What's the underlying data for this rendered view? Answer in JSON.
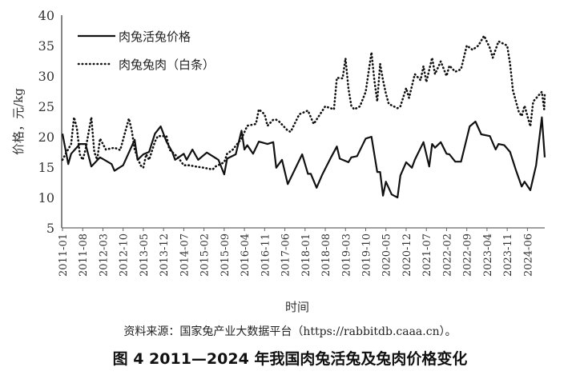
{
  "chart_data": {
    "type": "line",
    "title": "",
    "xlabel": "时间",
    "ylabel": "价格，元/kg",
    "ylim": [
      5,
      40
    ],
    "yticks": [
      5,
      10,
      15,
      20,
      25,
      30,
      35,
      40
    ],
    "x_unit": "month index from 2011-01",
    "x_range": [
      0,
      167
    ],
    "xtick_labels": [
      "2011-01",
      "2011-08",
      "2012-03",
      "2012-10",
      "2013-05",
      "2013-12",
      "2014-07",
      "2015-02",
      "2015-09",
      "2016-04",
      "2016-11",
      "2017-06",
      "2018-01",
      "2018-08",
      "2019-03",
      "2019-10",
      "2020-05",
      "2020-12",
      "2021-07",
      "2022-02",
      "2022-09",
      "2023-04",
      "2023-11",
      "2024-06"
    ],
    "xtick_step_months": 7,
    "grid": false,
    "legend_position": "top-left",
    "series": [
      {
        "name": "肉兔活兔价格",
        "style": "solid",
        "points": [
          [
            0,
            20.5
          ],
          [
            2,
            15.5
          ],
          [
            3,
            17.2
          ],
          [
            6,
            18.8
          ],
          [
            8,
            18.8
          ],
          [
            10,
            15.1
          ],
          [
            13,
            16.6
          ],
          [
            17,
            15.5
          ],
          [
            18,
            14.4
          ],
          [
            21,
            15.3
          ],
          [
            25,
            19.5
          ],
          [
            26,
            16.2
          ],
          [
            28,
            17.1
          ],
          [
            30,
            17.5
          ],
          [
            32,
            20.5
          ],
          [
            34,
            21.7
          ],
          [
            36,
            19.2
          ],
          [
            38,
            17.5
          ],
          [
            39,
            16.2
          ],
          [
            42,
            17.2
          ],
          [
            43,
            16.2
          ],
          [
            45,
            17.9
          ],
          [
            47,
            16.2
          ],
          [
            50,
            17.4
          ],
          [
            52,
            16.8
          ],
          [
            54,
            16.2
          ],
          [
            56,
            13.8
          ],
          [
            57,
            16.4
          ],
          [
            60,
            17.1
          ],
          [
            62,
            21
          ],
          [
            63,
            17.9
          ],
          [
            64,
            18.6
          ],
          [
            66,
            17.2
          ],
          [
            68,
            19.2
          ],
          [
            71,
            18.8
          ],
          [
            73,
            19.1
          ],
          [
            74,
            14.9
          ],
          [
            76,
            16.2
          ],
          [
            78,
            12.2
          ],
          [
            83,
            17.1
          ],
          [
            85,
            13.9
          ],
          [
            86,
            13.9
          ],
          [
            88,
            11.6
          ],
          [
            90,
            13.8
          ],
          [
            93,
            16.6
          ],
          [
            95,
            18.4
          ],
          [
            96,
            16.4
          ],
          [
            99,
            15.8
          ],
          [
            100,
            16.6
          ],
          [
            102,
            16.8
          ],
          [
            105,
            19.7
          ],
          [
            107,
            20
          ],
          [
            109,
            14.2
          ],
          [
            110,
            14.2
          ],
          [
            111,
            10.3
          ],
          [
            112,
            12.6
          ],
          [
            114,
            10.5
          ],
          [
            116,
            10
          ],
          [
            117,
            13.6
          ],
          [
            119,
            15.8
          ],
          [
            121,
            14.9
          ],
          [
            122,
            16.2
          ],
          [
            125,
            19.1
          ],
          [
            127,
            15.1
          ],
          [
            128,
            18.8
          ],
          [
            129,
            18.2
          ],
          [
            131,
            19.1
          ],
          [
            133,
            17.2
          ],
          [
            134,
            17.1
          ],
          [
            136,
            15.9
          ],
          [
            138,
            15.9
          ],
          [
            141,
            21.7
          ],
          [
            143,
            22.5
          ],
          [
            145,
            20.4
          ],
          [
            148,
            20.1
          ],
          [
            150,
            17.9
          ],
          [
            151,
            18.8
          ],
          [
            153,
            18.6
          ],
          [
            155,
            17.5
          ],
          [
            157,
            14.5
          ],
          [
            159,
            11.8
          ],
          [
            160,
            12.6
          ],
          [
            162,
            11.2
          ],
          [
            164,
            15.3
          ],
          [
            166,
            23.2
          ],
          [
            167,
            16.6
          ]
        ]
      },
      {
        "name": "肉兔兔肉（白条）",
        "style": "dotted",
        "points": [
          [
            0,
            16.2
          ],
          [
            1,
            17.1
          ],
          [
            3,
            18.8
          ],
          [
            4,
            23.2
          ],
          [
            5,
            21.4
          ],
          [
            6,
            17.1
          ],
          [
            7,
            16.2
          ],
          [
            8,
            17.9
          ],
          [
            10,
            23.2
          ],
          [
            11,
            17.5
          ],
          [
            12,
            16.2
          ],
          [
            13,
            19.7
          ],
          [
            15,
            17.9
          ],
          [
            18,
            18.2
          ],
          [
            20,
            17.8
          ],
          [
            23,
            23
          ],
          [
            24,
            21
          ],
          [
            25,
            17.9
          ],
          [
            27,
            15.3
          ],
          [
            28,
            14.9
          ],
          [
            29,
            17.1
          ],
          [
            30,
            16.2
          ],
          [
            32,
            19.2
          ],
          [
            33,
            20.1
          ],
          [
            36,
            20.1
          ],
          [
            37,
            17.9
          ],
          [
            40,
            16.6
          ],
          [
            42,
            15.3
          ],
          [
            44,
            15.3
          ],
          [
            46,
            15.1
          ],
          [
            49,
            14.9
          ],
          [
            52,
            14.6
          ],
          [
            53,
            15.1
          ],
          [
            56,
            15.8
          ],
          [
            57,
            17.2
          ],
          [
            59,
            17.9
          ],
          [
            62,
            19.7
          ],
          [
            64,
            21.8
          ],
          [
            67,
            22.1
          ],
          [
            68,
            24.5
          ],
          [
            70,
            23.7
          ],
          [
            71,
            21.8
          ],
          [
            73,
            22.8
          ],
          [
            74,
            22.8
          ],
          [
            75,
            22.5
          ],
          [
            78,
            21
          ],
          [
            79,
            20.8
          ],
          [
            82,
            23.7
          ],
          [
            85,
            24.3
          ],
          [
            87,
            22.1
          ],
          [
            91,
            25
          ],
          [
            94,
            24.5
          ],
          [
            95,
            29.7
          ],
          [
            97,
            29.6
          ],
          [
            98,
            32.9
          ],
          [
            99,
            28
          ],
          [
            100,
            25.1
          ],
          [
            101,
            24.5
          ],
          [
            103,
            25
          ],
          [
            105,
            27.4
          ],
          [
            107,
            33.9
          ],
          [
            108,
            29.3
          ],
          [
            109,
            25.8
          ],
          [
            110,
            32
          ],
          [
            111,
            29.3
          ],
          [
            112,
            27.1
          ],
          [
            113,
            25.4
          ],
          [
            116,
            24.7
          ],
          [
            117,
            25
          ],
          [
            119,
            28
          ],
          [
            120,
            26.4
          ],
          [
            122,
            30.3
          ],
          [
            124,
            29.3
          ],
          [
            125,
            31.6
          ],
          [
            126,
            29
          ],
          [
            128,
            33
          ],
          [
            129,
            30.3
          ],
          [
            131,
            32.4
          ],
          [
            133,
            30
          ],
          [
            134,
            31.7
          ],
          [
            136,
            30.7
          ],
          [
            138,
            31.1
          ],
          [
            140,
            35
          ],
          [
            142,
            34.3
          ],
          [
            144,
            35
          ],
          [
            146,
            36.6
          ],
          [
            148,
            34.6
          ],
          [
            149,
            33
          ],
          [
            151,
            35.7
          ],
          [
            154,
            35
          ],
          [
            155,
            32
          ],
          [
            156,
            27.6
          ],
          [
            158,
            24.1
          ],
          [
            159,
            23.4
          ],
          [
            160,
            25.1
          ],
          [
            162,
            21.7
          ],
          [
            163,
            25.8
          ],
          [
            166,
            27.4
          ],
          [
            166.8,
            24.5
          ],
          [
            167,
            27
          ]
        ]
      }
    ]
  },
  "source_note": "资料来源：国家兔产业大数据平台（https://rabbitdb.caaa.cn）。",
  "caption": "图 4 2011—2024 年我国肉兔活兔及兔肉价格变化"
}
